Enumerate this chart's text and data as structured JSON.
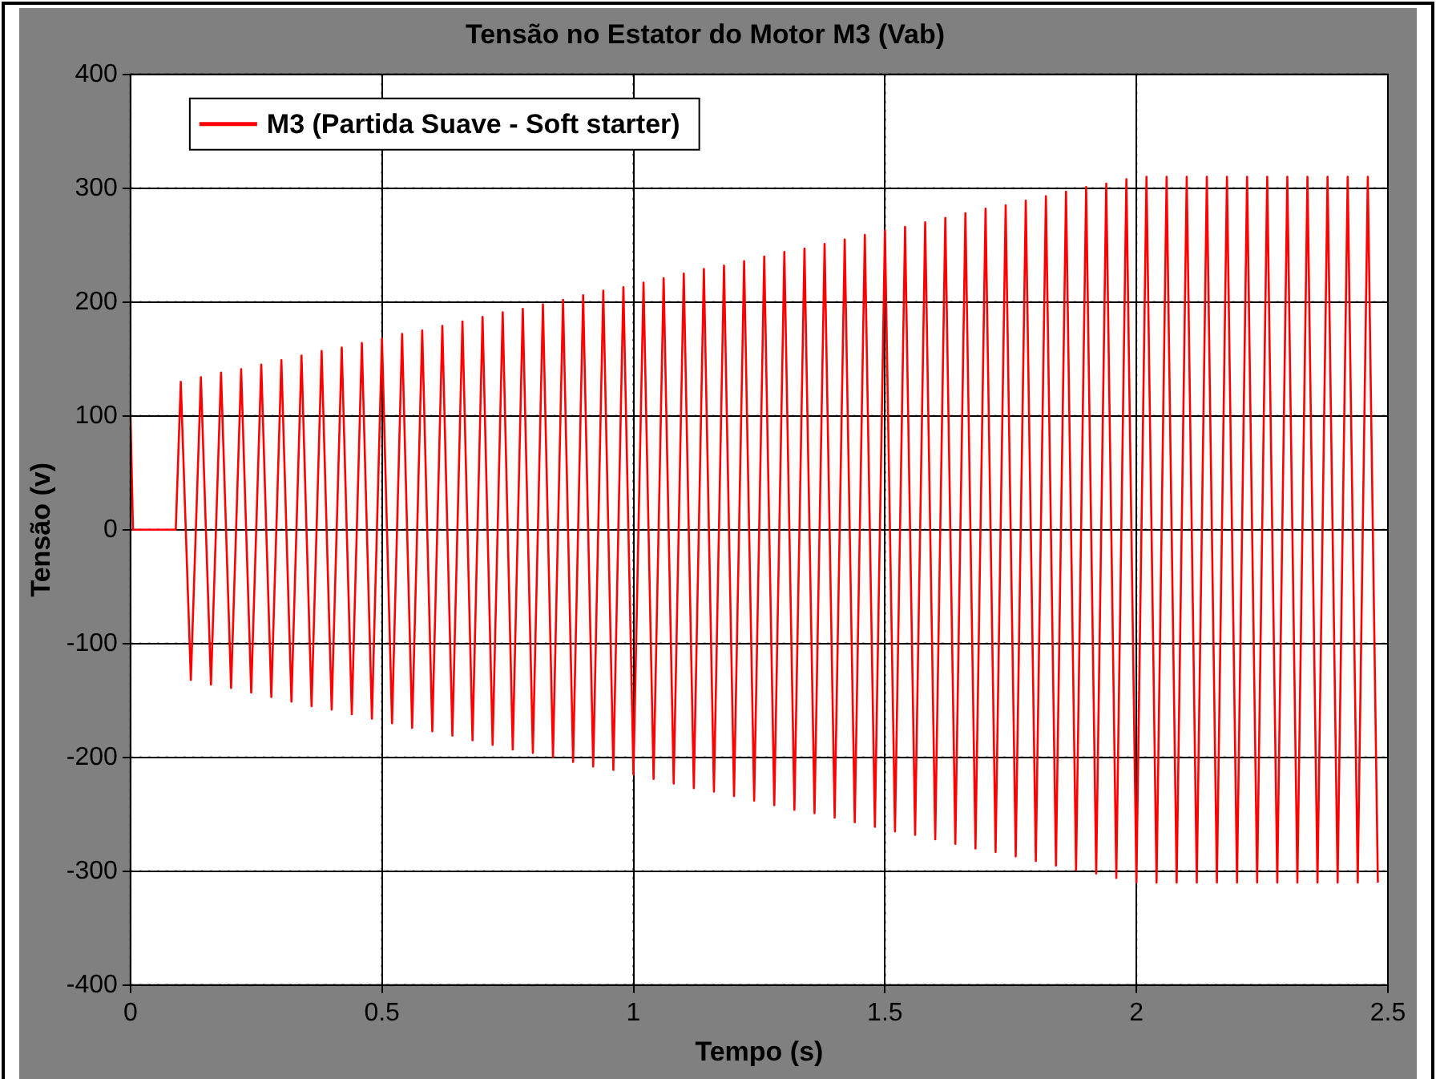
{
  "chart_data": {
    "type": "line",
    "title": "Tensão no Estator do Motor M3 (Vab)",
    "xlabel": "Tempo (s)",
    "ylabel": "Tensão (v)",
    "xlim": [
      0,
      2.5
    ],
    "xticks": [
      0,
      0.5,
      1,
      1.5,
      2,
      2.5
    ],
    "ylim": [
      -400,
      400
    ],
    "yticks": [
      -400,
      -300,
      -200,
      -100,
      0,
      100,
      200,
      300,
      400
    ],
    "grid": true,
    "legend": "top left",
    "marker": "none",
    "line_style": "solid",
    "series": [
      {
        "name": "M3 (Partida Suave - Soft starter)",
        "color": "#ff0000",
        "x": [
          0,
          0.005,
          0.09,
          0.1,
          0.12,
          0.14,
          0.16,
          0.18,
          0.2,
          0.22,
          0.24,
          0.26,
          0.28,
          0.3,
          0.32,
          0.34,
          0.36,
          0.38,
          0.4,
          0.42,
          0.44,
          0.46,
          0.48,
          0.5,
          0.52,
          0.54,
          0.56,
          0.58,
          0.6,
          0.62,
          0.64,
          0.66,
          0.68,
          0.7,
          0.72,
          0.74,
          0.76,
          0.78,
          0.8,
          0.82,
          0.84,
          0.86,
          0.88,
          0.9,
          0.92,
          0.94,
          0.96,
          0.98,
          1,
          1.02,
          1.04,
          1.06,
          1.08,
          1.1,
          1.12,
          1.14,
          1.16,
          1.18,
          1.2,
          1.22,
          1.24,
          1.26,
          1.28,
          1.3,
          1.32,
          1.34,
          1.36,
          1.38,
          1.4,
          1.42,
          1.44,
          1.46,
          1.48,
          1.5,
          1.52,
          1.54,
          1.56,
          1.58,
          1.6,
          1.62,
          1.64,
          1.66,
          1.68,
          1.7,
          1.72,
          1.74,
          1.76,
          1.78,
          1.8,
          1.82,
          1.84,
          1.86,
          1.88,
          1.9,
          1.92,
          1.94,
          1.96,
          1.98,
          2,
          2.02,
          2.04,
          2.06,
          2.08,
          2.1,
          2.12,
          2.14,
          2.16,
          2.18,
          2.2,
          2.22,
          2.24,
          2.26,
          2.28,
          2.3,
          2.32,
          2.34,
          2.36,
          2.38,
          2.4,
          2.42,
          2.44,
          2.46,
          2.48
        ],
        "values": [
          100,
          0,
          0,
          130,
          -132,
          134,
          -136,
          138,
          -139,
          141,
          -143,
          145,
          -147,
          149,
          -151,
          153,
          -155,
          157,
          -158,
          160,
          -162,
          164,
          -166,
          168,
          -170,
          172,
          -174,
          175,
          -177,
          179,
          -181,
          183,
          -185,
          187,
          -189,
          191,
          -193,
          194,
          -196,
          198,
          -200,
          202,
          -204,
          206,
          -208,
          210,
          -211,
          213,
          -215,
          217,
          -219,
          221,
          -223,
          225,
          -227,
          229,
          -230,
          232,
          -234,
          236,
          -238,
          240,
          -242,
          244,
          -246,
          247,
          -249,
          251,
          -253,
          255,
          -257,
          259,
          -261,
          263,
          -265,
          266,
          -268,
          270,
          -272,
          274,
          -276,
          278,
          -280,
          282,
          -283,
          285,
          -287,
          289,
          -291,
          293,
          -295,
          297,
          -299,
          301,
          -302,
          304,
          -306,
          308,
          -310,
          310,
          -310,
          310,
          -310,
          310,
          -310,
          310,
          -310,
          310,
          -310,
          310,
          -310,
          310,
          -310,
          310,
          -310,
          310,
          -310,
          310,
          -310,
          310,
          -310,
          310,
          -310
        ]
      }
    ]
  }
}
